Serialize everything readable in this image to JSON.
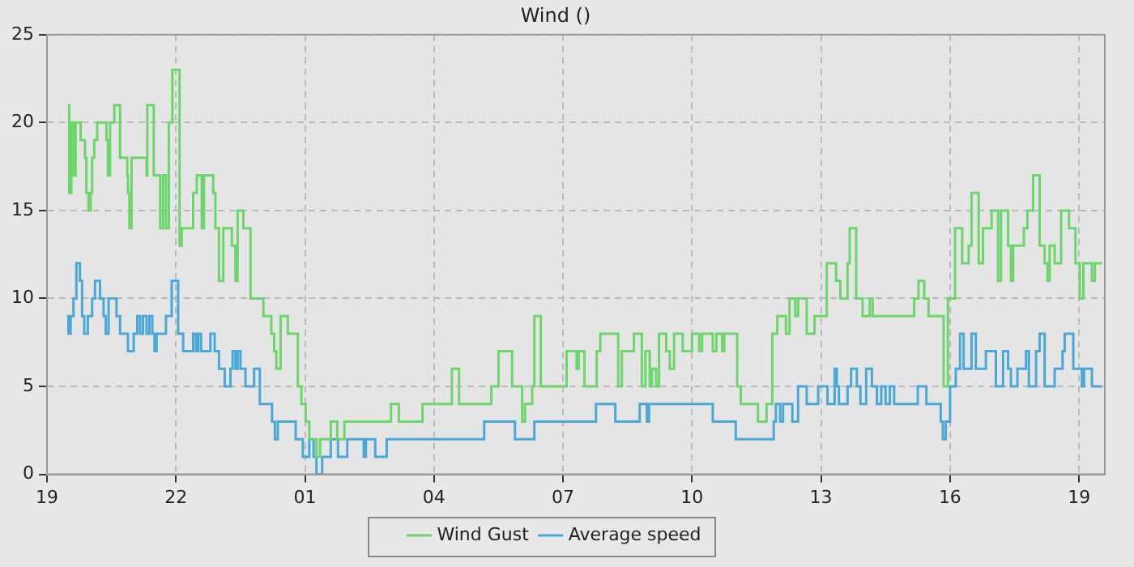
{
  "chart_data": {
    "type": "step",
    "title": "Wind ()",
    "xlim": [
      "--01-01T19:00",
      "--01-02T19:36"
    ],
    "xticks": [
      {
        "value": "--01-01T19:00",
        "label": "19"
      },
      {
        "value": "--01-01T22:00",
        "label": "22"
      },
      {
        "value": "--01-02T01:00",
        "label": "01"
      },
      {
        "value": "--01-02T04:00",
        "label": "04"
      },
      {
        "value": "--01-02T07:00",
        "label": "07"
      },
      {
        "value": "--01-02T10:00",
        "label": "10"
      },
      {
        "value": "--01-02T13:00",
        "label": "13"
      },
      {
        "value": "--01-02T16:00",
        "label": "16"
      },
      {
        "value": "--01-02T19:00",
        "label": "19"
      }
    ],
    "ylim": [
      0,
      25
    ],
    "yticks": [
      0,
      5,
      10,
      15,
      20,
      25
    ],
    "grid": true,
    "legend": "bottom",
    "series": [
      {
        "name": "Wind Gust",
        "color": "#6cd66c",
        "x": [
          "--01-01T19:29",
          "--01-01T19:31",
          "--01-01T19:34",
          "--01-01T19:37",
          "--01-01T19:40",
          "--01-01T19:47",
          "--01-01T19:53",
          "--01-01T19:55",
          "--01-01T19:58",
          "--01-01T20:01",
          "--01-01T20:03",
          "--01-01T20:06",
          "--01-01T20:10",
          "--01-01T20:23",
          "--01-01T20:25",
          "--01-01T20:28",
          "--01-01T20:34",
          "--01-01T20:42",
          "--01-01T20:52",
          "--01-01T20:53",
          "--01-01T20:55",
          "--01-01T20:58",
          "--01-01T21:19",
          "--01-01T21:20",
          "--01-01T21:29",
          "--01-01T21:38",
          "--01-01T21:42",
          "--01-01T21:46",
          "--01-01T21:50",
          "--01-01T21:55",
          "--01-01T22:05",
          "--01-01T22:08",
          "--01-01T22:12",
          "--01-01T22:24",
          "--01-01T22:29",
          "--01-01T22:36",
          "--01-01T22:39",
          "--01-01T22:45",
          "--01-01T22:52",
          "--01-01T22:55",
          "--01-01T23:00",
          "--01-01T23:06",
          "--01-01T23:14",
          "--01-01T23:18",
          "--01-01T23:23",
          "--01-01T23:26",
          "--01-01T23:34",
          "--01-01T23:44",
          "--01-02T00:02",
          "--01-02T00:13",
          "--01-02T00:17",
          "--01-02T00:20",
          "--01-02T00:26",
          "--01-02T00:36",
          "--01-02T00:50",
          "--01-02T00:55",
          "--01-02T01:01",
          "--01-02T01:06",
          "--01-02T01:16",
          "--01-02T01:21",
          "--01-02T01:36",
          "--01-02T01:45",
          "--01-02T01:55",
          "--01-02T03:00",
          "--01-02T03:11",
          "--01-02T03:44",
          "--01-02T04:25",
          "--01-02T04:35",
          "--01-02T05:20",
          "--01-02T05:30",
          "--01-02T05:49",
          "--01-02T06:03",
          "--01-02T06:07",
          "--01-02T06:17",
          "--01-02T06:20",
          "--01-02T06:29",
          "--01-02T07:05",
          "--01-02T07:19",
          "--01-02T07:22",
          "--01-02T07:30",
          "--01-02T07:47",
          "--01-02T07:52",
          "--01-02T08:17",
          "--01-02T08:22",
          "--01-02T08:39",
          "--01-02T08:50",
          "--01-02T08:55",
          "--01-02T09:01",
          "--01-02T09:04",
          "--01-02T09:10",
          "--01-02T09:14",
          "--01-02T09:24",
          "--01-02T09:29",
          "--01-02T09:35",
          "--01-02T09:47",
          "--01-02T10:00",
          "--01-02T10:10",
          "--01-02T10:14",
          "--01-02T10:29",
          "--01-02T10:34",
          "--01-02T10:42",
          "--01-02T10:45",
          "--01-02T11:03",
          "--01-02T11:08",
          "--01-02T11:32",
          "--01-02T11:44",
          "--01-02T11:52",
          "--01-02T11:59",
          "--01-02T12:11",
          "--01-02T12:16",
          "--01-02T12:24",
          "--01-02T12:28",
          "--01-02T12:40",
          "--01-02T12:51",
          "--01-02T13:08",
          "--01-02T13:21",
          "--01-02T13:27",
          "--01-02T13:37",
          "--01-02T13:40",
          "--01-02T13:49",
          "--01-02T13:58",
          "--01-02T14:08",
          "--01-02T14:12",
          "--01-02T15:10",
          "--01-02T15:16",
          "--01-02T15:24",
          "--01-02T15:30",
          "--01-02T15:51",
          "--01-02T15:57",
          "--01-02T16:07",
          "--01-02T16:17",
          "--01-02T16:26",
          "--01-02T16:30",
          "--01-02T16:40",
          "--01-02T16:46",
          "--01-02T16:58",
          "--01-02T17:07",
          "--01-02T17:11",
          "--01-02T17:21",
          "--01-02T17:25",
          "--01-02T17:28",
          "--01-02T17:43",
          "--01-02T17:48",
          "--01-02T17:56",
          "--01-02T18:05",
          "--01-02T18:12",
          "--01-02T18:16",
          "--01-02T18:19",
          "--01-02T18:26",
          "--01-02T18:35",
          "--01-02T18:46",
          "--01-02T18:55",
          "--01-02T19:01",
          "--01-02T19:06",
          "--01-02T19:18",
          "--01-02T19:22",
          "--01-02T19:32"
        ],
        "values": [
          21,
          16,
          20,
          17,
          20,
          19,
          18,
          16,
          15,
          16,
          18,
          19,
          20,
          19,
          17,
          20,
          21,
          18,
          17,
          16,
          14,
          18,
          17,
          21,
          17,
          14,
          17,
          14,
          20,
          23,
          13,
          14,
          14,
          16,
          17,
          14,
          17,
          17,
          16,
          14,
          11,
          14,
          14,
          13,
          11,
          15,
          14,
          10,
          9,
          8,
          7,
          6,
          9,
          8,
          5,
          4,
          3,
          2,
          1,
          2,
          3,
          2,
          3,
          4,
          3,
          4,
          6,
          4,
          5,
          7,
          5,
          3,
          4,
          5,
          9,
          5,
          7,
          6,
          7,
          5,
          7,
          8,
          5,
          7,
          8,
          5,
          7,
          5,
          6,
          5,
          8,
          7,
          6,
          8,
          7,
          8,
          7,
          8,
          7,
          8,
          7,
          8,
          5,
          4,
          3,
          4,
          8,
          9,
          8,
          10,
          9,
          10,
          8,
          9,
          12,
          11,
          10,
          12,
          14,
          10,
          9,
          10,
          9,
          10,
          11,
          10,
          9,
          5,
          10,
          14,
          12,
          13,
          16,
          12,
          14,
          15,
          11,
          15,
          13,
          11,
          13,
          14,
          15,
          17,
          13,
          12,
          11,
          13,
          12,
          15,
          14,
          12,
          10,
          12,
          11,
          12,
          12
        ]
      },
      {
        "name": "Average speed",
        "color": "#4aa8d8",
        "x": [
          "--01-01T19:28",
          "--01-01T19:30",
          "--01-01T19:33",
          "--01-01T19:37",
          "--01-01T19:41",
          "--01-01T19:46",
          "--01-01T19:49",
          "--01-01T19:52",
          "--01-01T19:57",
          "--01-01T20:03",
          "--01-01T20:07",
          "--01-01T20:14",
          "--01-01T20:19",
          "--01-01T20:22",
          "--01-01T20:26",
          "--01-01T20:37",
          "--01-01T20:42",
          "--01-01T20:53",
          "--01-01T21:01",
          "--01-01T21:06",
          "--01-01T21:10",
          "--01-01T21:14",
          "--01-01T21:19",
          "--01-01T21:23",
          "--01-01T21:27",
          "--01-01T21:30",
          "--01-01T21:33",
          "--01-01T21:46",
          "--01-01T21:54",
          "--01-01T22:03",
          "--01-01T22:10",
          "--01-01T22:24",
          "--01-01T22:28",
          "--01-01T22:31",
          "--01-01T22:35",
          "--01-01T22:48",
          "--01-01T22:54",
          "--01-01T23:00",
          "--01-01T23:08",
          "--01-01T23:16",
          "--01-01T23:19",
          "--01-01T23:23",
          "--01-01T23:26",
          "--01-01T23:30",
          "--01-01T23:37",
          "--01-01T23:49",
          "--01-01T23:57",
          "--01-02T00:14",
          "--01-02T00:18",
          "--01-02T00:22",
          "--01-02T00:47",
          "--01-02T00:57",
          "--01-02T01:06",
          "--01-02T01:12",
          "--01-02T01:16",
          "--01-02T01:24",
          "--01-02T01:36",
          "--01-02T01:46",
          "--01-02T01:59",
          "--01-02T02:22",
          "--01-02T02:25",
          "--01-02T02:38",
          "--01-02T02:54",
          "--01-02T05:10",
          "--01-02T05:53",
          "--01-02T06:20",
          "--01-02T07:46",
          "--01-02T08:13",
          "--01-02T08:47",
          "--01-02T08:57",
          "--01-02T09:00",
          "--01-02T09:16",
          "--01-02T10:29",
          "--01-02T11:01",
          "--01-02T11:54",
          "--01-02T11:57",
          "--01-02T12:03",
          "--01-02T12:07",
          "--01-02T12:20",
          "--01-02T12:28",
          "--01-02T12:40",
          "--01-02T12:56",
          "--01-02T13:09",
          "--01-02T13:19",
          "--01-02T13:22",
          "--01-02T13:25",
          "--01-02T13:37",
          "--01-02T13:42",
          "--01-02T13:50",
          "--01-02T13:55",
          "--01-02T14:03",
          "--01-02T14:11",
          "--01-02T14:18",
          "--01-02T14:24",
          "--01-02T14:30",
          "--01-02T14:36",
          "--01-02T14:42",
          "--01-02T15:11",
          "--01-02T15:15",
          "--01-02T15:27",
          "--01-02T15:47",
          "--01-02T15:50",
          "--01-02T15:54",
          "--01-02T16:00",
          "--01-02T16:08",
          "--01-02T16:14",
          "--01-02T16:19",
          "--01-02T16:30",
          "--01-02T16:36",
          "--01-02T16:50",
          "--01-02T17:04",
          "--01-02T17:14",
          "--01-02T17:21",
          "--01-02T17:25",
          "--01-02T17:34",
          "--01-02T17:46",
          "--01-02T17:50",
          "--01-02T18:00",
          "--01-02T18:05",
          "--01-02T18:12",
          "--01-02T18:26",
          "--01-02T18:37",
          "--01-02T18:40",
          "--01-02T18:52",
          "--01-02T19:04",
          "--01-02T19:07",
          "--01-02T19:18",
          "--01-02T19:32"
        ],
        "values": [
          9,
          8,
          9,
          10,
          12,
          11,
          9,
          8,
          9,
          10,
          11,
          10,
          9,
          8,
          10,
          9,
          8,
          7,
          8,
          9,
          8,
          9,
          8,
          9,
          8,
          7,
          8,
          9,
          11,
          8,
          7,
          8,
          7,
          8,
          7,
          8,
          7,
          6,
          5,
          6,
          7,
          6,
          7,
          6,
          5,
          6,
          4,
          3,
          2,
          3,
          2,
          1,
          2,
          1,
          0,
          1,
          2,
          1,
          2,
          1,
          2,
          1,
          2,
          3,
          2,
          3,
          4,
          3,
          4,
          3,
          4,
          4,
          3,
          2,
          3,
          4,
          3,
          4,
          3,
          5,
          4,
          5,
          4,
          6,
          5,
          4,
          5,
          6,
          5,
          4,
          6,
          5,
          4,
          5,
          4,
          5,
          4,
          4,
          5,
          4,
          3,
          2,
          3,
          5,
          6,
          8,
          6,
          8,
          6,
          7,
          5,
          7,
          6,
          5,
          6,
          7,
          5,
          7,
          8,
          5,
          6,
          7,
          8,
          6,
          5,
          6,
          5,
          5
        ]
      }
    ]
  }
}
